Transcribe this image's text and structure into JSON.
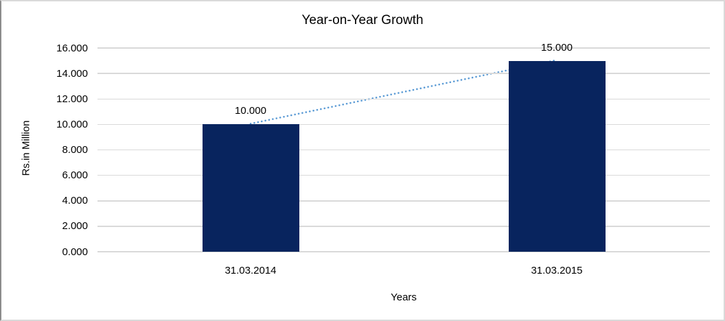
{
  "chart_data": {
    "type": "bar",
    "title": "Year-on-Year Growth",
    "xlabel": "Years",
    "ylabel": "Rs.in Million",
    "categories": [
      "31.03.2014",
      "31.03.2015"
    ],
    "values": [
      10.0,
      15.0
    ],
    "bar_value_labels": [
      "10.000",
      "15.000"
    ],
    "y_tick_values": [
      0,
      2,
      4,
      6,
      8,
      10,
      12,
      14,
      16
    ],
    "y_tick_labels": [
      "0.000",
      "2.000",
      "4.000",
      "6.000",
      "8.000",
      "10.000",
      "12.000",
      "14.000",
      "16.000"
    ],
    "ylim": [
      0,
      16
    ],
    "grid": true,
    "legend": "none",
    "trendline": {
      "type": "linear",
      "style": "dotted",
      "from_value": 10.0,
      "to_value": 15.0
    },
    "colors": {
      "bar": "#08245E",
      "trendline": "#5B9BD5",
      "gridline": "#D9D9D9",
      "text": "#000000",
      "border": "#D9D9D9",
      "border_left": "#8C8C8C"
    }
  }
}
